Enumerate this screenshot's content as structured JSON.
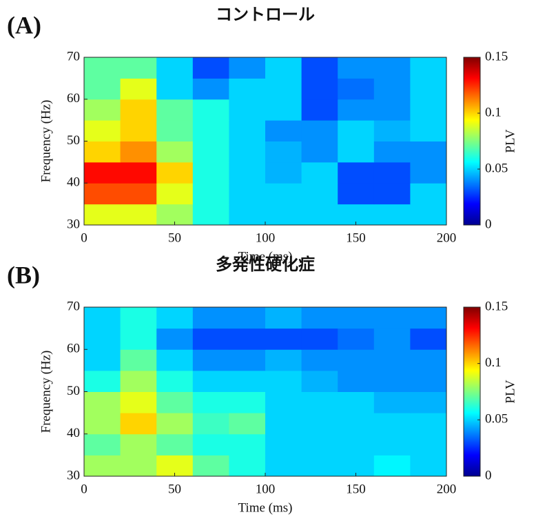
{
  "chart_data": [
    {
      "type": "heatmap",
      "panel_label": "(A)",
      "title": "コントロール",
      "x_label": "Time (ms)",
      "y_label": "Frequency (Hz)",
      "colorbar_label": "PLV",
      "xlim": [
        0,
        200
      ],
      "xticks": [
        0,
        50,
        100,
        150,
        200
      ],
      "ylim": [
        30,
        70
      ],
      "yticks": [
        30,
        40,
        50,
        60,
        70
      ],
      "clim": [
        0,
        0.15
      ],
      "cticks": [
        0,
        0.05,
        0.1,
        0.15
      ],
      "colormap": "jet",
      "x": [
        10,
        30,
        50,
        70,
        90,
        110,
        130,
        150,
        170,
        190
      ],
      "y": [
        32.5,
        37.5,
        42.5,
        47.5,
        52.5,
        57.5,
        62.5,
        67.5
      ],
      "values": [
        [
          0.09,
          0.09,
          0.08,
          0.06,
          0.05,
          0.05,
          0.05,
          0.05,
          0.05,
          0.05
        ],
        [
          0.12,
          0.12,
          0.09,
          0.06,
          0.05,
          0.05,
          0.05,
          0.03,
          0.03,
          0.05
        ],
        [
          0.13,
          0.13,
          0.1,
          0.06,
          0.05,
          0.045,
          0.05,
          0.03,
          0.03,
          0.04
        ],
        [
          0.1,
          0.11,
          0.08,
          0.06,
          0.05,
          0.045,
          0.04,
          0.05,
          0.04,
          0.04
        ],
        [
          0.09,
          0.1,
          0.07,
          0.06,
          0.05,
          0.04,
          0.04,
          0.05,
          0.045,
          0.05
        ],
        [
          0.08,
          0.1,
          0.07,
          0.06,
          0.05,
          0.05,
          0.03,
          0.04,
          0.04,
          0.05
        ],
        [
          0.07,
          0.09,
          0.05,
          0.04,
          0.05,
          0.05,
          0.03,
          0.035,
          0.04,
          0.05
        ],
        [
          0.07,
          0.07,
          0.05,
          0.03,
          0.04,
          0.05,
          0.03,
          0.04,
          0.04,
          0.05
        ]
      ]
    },
    {
      "type": "heatmap",
      "panel_label": "(B)",
      "title": "多発性硬化症",
      "x_label": "Time (ms)",
      "y_label": "Frequency (Hz)",
      "colorbar_label": "PLV",
      "xlim": [
        0,
        200
      ],
      "xticks": [
        0,
        50,
        100,
        150,
        200
      ],
      "ylim": [
        30,
        70
      ],
      "yticks": [
        30,
        40,
        50,
        60,
        70
      ],
      "clim": [
        0,
        0.15
      ],
      "cticks": [
        0,
        0.05,
        0.1,
        0.15
      ],
      "colormap": "jet",
      "x": [
        10,
        30,
        50,
        70,
        90,
        110,
        130,
        150,
        170,
        190
      ],
      "y": [
        32.5,
        37.5,
        42.5,
        47.5,
        52.5,
        57.5,
        62.5,
        67.5
      ],
      "values": [
        [
          0.08,
          0.08,
          0.09,
          0.07,
          0.06,
          0.05,
          0.05,
          0.05,
          0.055,
          0.05
        ],
        [
          0.07,
          0.08,
          0.07,
          0.06,
          0.06,
          0.05,
          0.05,
          0.05,
          0.05,
          0.05
        ],
        [
          0.08,
          0.1,
          0.08,
          0.065,
          0.07,
          0.05,
          0.05,
          0.05,
          0.05,
          0.05
        ],
        [
          0.08,
          0.09,
          0.07,
          0.06,
          0.06,
          0.05,
          0.05,
          0.05,
          0.045,
          0.045
        ],
        [
          0.06,
          0.08,
          0.06,
          0.05,
          0.05,
          0.05,
          0.045,
          0.04,
          0.04,
          0.04
        ],
        [
          0.05,
          0.07,
          0.05,
          0.04,
          0.04,
          0.045,
          0.04,
          0.04,
          0.04,
          0.04
        ],
        [
          0.05,
          0.06,
          0.04,
          0.03,
          0.03,
          0.03,
          0.03,
          0.035,
          0.04,
          0.03
        ],
        [
          0.05,
          0.06,
          0.05,
          0.04,
          0.04,
          0.045,
          0.04,
          0.04,
          0.04,
          0.04
        ]
      ]
    }
  ]
}
